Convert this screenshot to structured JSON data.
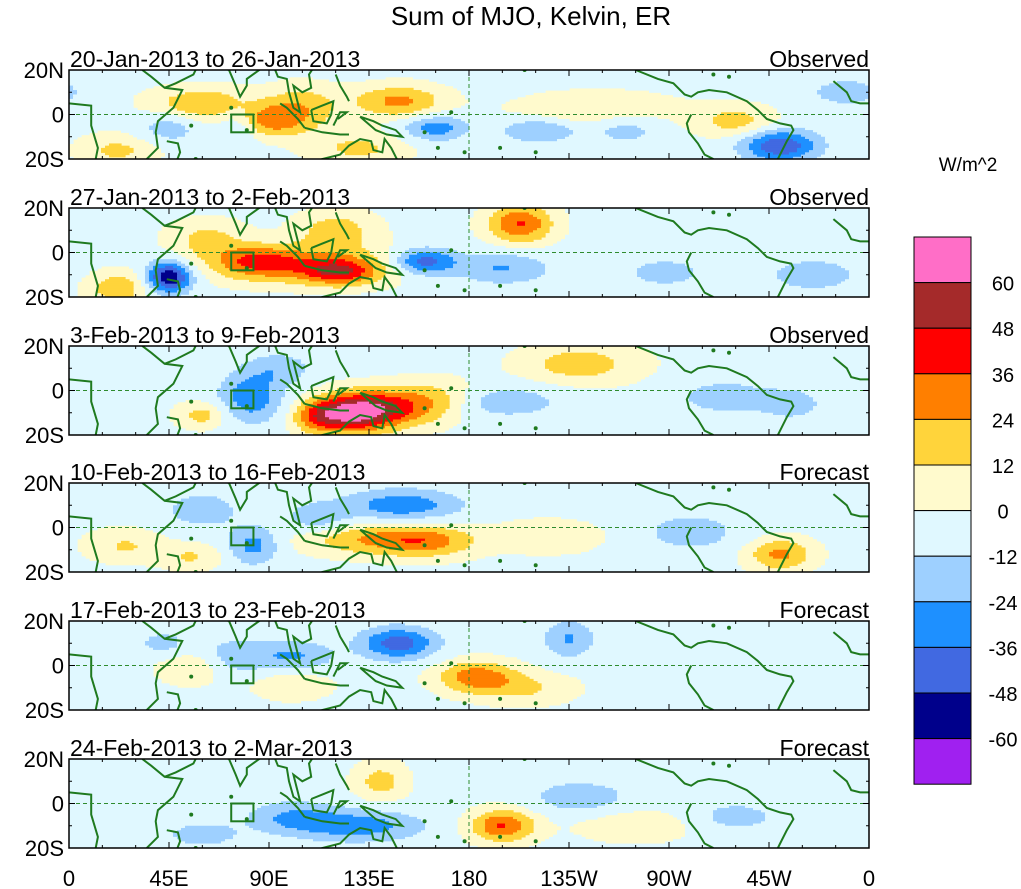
{
  "chart_data": {
    "type": "heatmap",
    "title": "Sum of MJO, Kelvin, ER",
    "units": "W/m^2",
    "xlabel": "",
    "ylabel": "",
    "x_tick_labels": [
      "0",
      "45E",
      "90E",
      "135E",
      "180",
      "135W",
      "90W",
      "45W",
      "0"
    ],
    "x_ticks_deg": [
      0,
      45,
      90,
      135,
      180,
      225,
      270,
      315,
      360
    ],
    "xlim_deg": [
      0,
      360
    ],
    "y_tick_labels": [
      "20N",
      "0",
      "20S"
    ],
    "ylim_deg": [
      -20,
      20
    ],
    "colorbar": {
      "labels": [
        "60",
        "48",
        "36",
        "24",
        "12",
        "0",
        "-12",
        "-24",
        "-36",
        "-48",
        "-60"
      ],
      "colors": [
        "#ff6ec7",
        "#a52a2a",
        "#ff0000",
        "#ff7f00",
        "#ffd43b",
        "#fffacd",
        "#e0f8ff",
        "#9ed0ff",
        "#1e90ff",
        "#4169e1",
        "#00008b",
        "#a020f0"
      ]
    },
    "panels": [
      {
        "period": "20-Jan-2013 to 26-Jan-2013",
        "status": "Observed",
        "blobs": [
          {
            "lon": 90,
            "lat": -3,
            "a": 34,
            "wx": 14,
            "wy": 5
          },
          {
            "lon": 60,
            "lat": 5,
            "a": 26,
            "wx": 16,
            "wy": 5
          },
          {
            "lon": 105,
            "lat": 5,
            "a": 20,
            "wx": 12,
            "wy": 6
          },
          {
            "lon": 148,
            "lat": 6,
            "a": 30,
            "wx": 14,
            "wy": 5
          },
          {
            "lon": 238,
            "lat": 1,
            "a": 16,
            "wx": 25,
            "wy": 6
          },
          {
            "lon": 22,
            "lat": -16,
            "a": 18,
            "wx": 12,
            "wy": 5
          },
          {
            "lon": 300,
            "lat": -3,
            "a": 20,
            "wx": 12,
            "wy": 5
          },
          {
            "lon": 130,
            "lat": -15,
            "a": 18,
            "wx": 15,
            "wy": 5
          },
          {
            "lon": 320,
            "lat": -14,
            "a": -44,
            "wx": 12,
            "wy": 5
          },
          {
            "lon": 76,
            "lat": -4,
            "a": -22,
            "wx": 7,
            "wy": 6
          },
          {
            "lon": 165,
            "lat": -6,
            "a": -28,
            "wx": 10,
            "wy": 4
          },
          {
            "lon": 212,
            "lat": -7,
            "a": -24,
            "wx": 12,
            "wy": 4
          },
          {
            "lon": 250,
            "lat": -6,
            "a": -18,
            "wx": 12,
            "wy": 5
          },
          {
            "lon": 45,
            "lat": -6,
            "a": -16,
            "wx": 10,
            "wy": 5
          },
          {
            "lon": 350,
            "lat": 10,
            "a": -14,
            "wx": 14,
            "wy": 5
          }
        ]
      },
      {
        "period": "27-Jan-2013 to 2-Feb-2013",
        "status": "Observed",
        "blobs": [
          {
            "lon": 105,
            "lat": -5,
            "a": 30,
            "wx": 28,
            "wy": 6
          },
          {
            "lon": 122,
            "lat": -9,
            "a": 36,
            "wx": 12,
            "wy": 4
          },
          {
            "lon": 84,
            "lat": -4,
            "a": 24,
            "wx": 12,
            "wy": 5
          },
          {
            "lon": 203,
            "lat": 13,
            "a": 40,
            "wx": 10,
            "wy": 6
          },
          {
            "lon": 120,
            "lat": 10,
            "a": 22,
            "wx": 12,
            "wy": 6
          },
          {
            "lon": 22,
            "lat": -16,
            "a": 24,
            "wx": 10,
            "wy": 5
          },
          {
            "lon": 62,
            "lat": 6,
            "a": 18,
            "wx": 12,
            "wy": 6
          },
          {
            "lon": 45,
            "lat": -11,
            "a": -58,
            "wx": 7,
            "wy": 5
          },
          {
            "lon": 160,
            "lat": -4,
            "a": -40,
            "wx": 10,
            "wy": 4
          },
          {
            "lon": 195,
            "lat": -7,
            "a": -22,
            "wx": 15,
            "wy": 5
          },
          {
            "lon": 335,
            "lat": -10,
            "a": -18,
            "wx": 14,
            "wy": 5
          },
          {
            "lon": 268,
            "lat": -9,
            "a": -14,
            "wx": 14,
            "wy": 5
          }
        ]
      },
      {
        "period": "3-Feb-2013 to 9-Feb-2013",
        "status": "Observed",
        "blobs": [
          {
            "lon": 128,
            "lat": -10,
            "a": 56,
            "wx": 12,
            "wy": 6
          },
          {
            "lon": 145,
            "lat": -8,
            "a": 34,
            "wx": 16,
            "wy": 6
          },
          {
            "lon": 112,
            "lat": -12,
            "a": 30,
            "wx": 8,
            "wy": 5
          },
          {
            "lon": 230,
            "lat": 12,
            "a": 22,
            "wx": 18,
            "wy": 6
          },
          {
            "lon": 60,
            "lat": -11,
            "a": 20,
            "wx": 8,
            "wy": 4
          },
          {
            "lon": 165,
            "lat": -3,
            "a": 16,
            "wx": 14,
            "wy": 6
          },
          {
            "lon": 82,
            "lat": -3,
            "a": -30,
            "wx": 10,
            "wy": 8
          },
          {
            "lon": 195,
            "lat": -5,
            "a": -18,
            "wx": 18,
            "wy": 5
          },
          {
            "lon": 295,
            "lat": -3,
            "a": -18,
            "wx": 14,
            "wy": 5
          },
          {
            "lon": 325,
            "lat": -6,
            "a": -16,
            "wx": 10,
            "wy": 5
          },
          {
            "lon": 95,
            "lat": 10,
            "a": -16,
            "wx": 10,
            "wy": 5
          }
        ]
      },
      {
        "period": "10-Feb-2013 to 16-Feb-2013",
        "status": "Forecast",
        "blobs": [
          {
            "lon": 160,
            "lat": -6,
            "a": 32,
            "wx": 16,
            "wy": 5
          },
          {
            "lon": 130,
            "lat": -5,
            "a": 22,
            "wx": 20,
            "wy": 5
          },
          {
            "lon": 320,
            "lat": -12,
            "a": 30,
            "wx": 10,
            "wy": 5
          },
          {
            "lon": 215,
            "lat": -4,
            "a": 14,
            "wx": 16,
            "wy": 5
          },
          {
            "lon": 25,
            "lat": -8,
            "a": 16,
            "wx": 12,
            "wy": 5
          },
          {
            "lon": 55,
            "lat": -13,
            "a": 16,
            "wx": 10,
            "wy": 4
          },
          {
            "lon": 150,
            "lat": 10,
            "a": -30,
            "wx": 18,
            "wy": 5
          },
          {
            "lon": 83,
            "lat": -8,
            "a": -26,
            "wx": 8,
            "wy": 6
          },
          {
            "lon": 60,
            "lat": 8,
            "a": -16,
            "wx": 12,
            "wy": 6
          },
          {
            "lon": 280,
            "lat": -2,
            "a": -16,
            "wx": 15,
            "wy": 6
          },
          {
            "lon": 112,
            "lat": 4,
            "a": -18,
            "wx": 10,
            "wy": 5
          }
        ]
      },
      {
        "period": "17-Feb-2013 to 23-Feb-2013",
        "status": "Forecast",
        "blobs": [
          {
            "lon": 183,
            "lat": -5,
            "a": 34,
            "wx": 12,
            "wy": 5
          },
          {
            "lon": 205,
            "lat": -10,
            "a": 16,
            "wx": 15,
            "wy": 5
          },
          {
            "lon": 55,
            "lat": -1,
            "a": 16,
            "wx": 10,
            "wy": 5
          },
          {
            "lon": 100,
            "lat": -8,
            "a": 14,
            "wx": 12,
            "wy": 5
          },
          {
            "lon": 148,
            "lat": 10,
            "a": -40,
            "wx": 12,
            "wy": 5
          },
          {
            "lon": 102,
            "lat": 4,
            "a": -22,
            "wx": 12,
            "wy": 5
          },
          {
            "lon": 225,
            "lat": 12,
            "a": -22,
            "wx": 8,
            "wy": 6
          },
          {
            "lon": 75,
            "lat": 4,
            "a": -16,
            "wx": 12,
            "wy": 6
          },
          {
            "lon": 42,
            "lat": 10,
            "a": -14,
            "wx": 8,
            "wy": 4
          }
        ]
      },
      {
        "period": "24-Feb-2013 to 2-Mar-2013",
        "status": "Forecast",
        "blobs": [
          {
            "lon": 195,
            "lat": -10,
            "a": 40,
            "wx": 10,
            "wy": 5
          },
          {
            "lon": 140,
            "lat": 10,
            "a": 20,
            "wx": 8,
            "wy": 6
          },
          {
            "lon": 255,
            "lat": -10,
            "a": 12,
            "wx": 18,
            "wy": 5
          },
          {
            "lon": 130,
            "lat": -10,
            "a": -28,
            "wx": 20,
            "wy": 5
          },
          {
            "lon": 100,
            "lat": -6,
            "a": -20,
            "wx": 14,
            "wy": 5
          },
          {
            "lon": 60,
            "lat": -14,
            "a": -16,
            "wx": 12,
            "wy": 4
          },
          {
            "lon": 230,
            "lat": 3,
            "a": -18,
            "wx": 15,
            "wy": 5
          },
          {
            "lon": 300,
            "lat": -6,
            "a": -14,
            "wx": 14,
            "wy": 5
          }
        ]
      }
    ]
  }
}
